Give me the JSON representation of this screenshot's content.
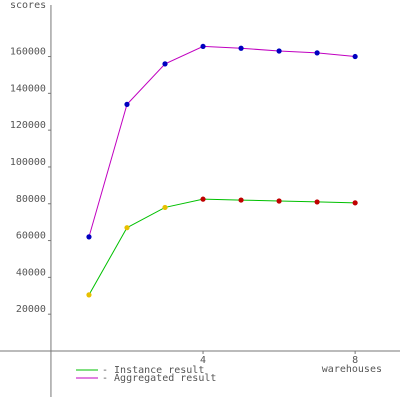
{
  "chart_data": {
    "type": "line",
    "y_label": "scores",
    "x_label": "warehouses",
    "x": [
      1,
      2,
      3,
      4,
      5,
      6,
      7,
      8
    ],
    "series": [
      {
        "name": "- Instance result",
        "color": "#00c000",
        "values": [
          30500,
          67000,
          78000,
          82500,
          82000,
          81500,
          81000,
          80500
        ],
        "marker_colors": [
          "#e8c000",
          "#e8c000",
          "#e8c000",
          "#c00000",
          "#c00000",
          "#c00000",
          "#c00000",
          "#c00000"
        ]
      },
      {
        "name": "- Aggregated result",
        "color": "#c000c0",
        "values": [
          62000,
          134000,
          156000,
          165500,
          164500,
          163000,
          162000,
          160000
        ],
        "marker_colors": [
          "#0000c0",
          "#0000c0",
          "#0000c0",
          "#0000c0",
          "#0000c0",
          "#0000c0",
          "#0000c0",
          "#0000c0"
        ]
      }
    ],
    "xlim": [
      -1.34,
      9.18
    ],
    "xticks": [
      4,
      8
    ],
    "ylim": [
      -25000,
      188000
    ],
    "yticks": [
      20000,
      40000,
      60000,
      80000,
      100000,
      120000,
      140000,
      160000
    ],
    "grid": false
  }
}
